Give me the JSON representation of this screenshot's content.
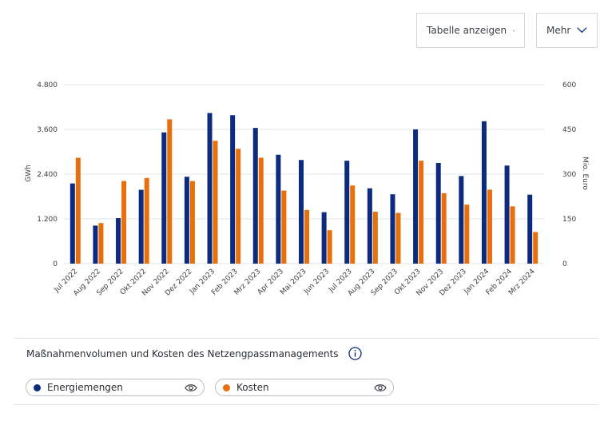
{
  "toolbar": {
    "table_label": "Tabelle anzeigen",
    "table_icon": "table-layout-icon",
    "more_label": "Mehr",
    "more_icon": "chevron-down-icon"
  },
  "caption": {
    "text": "Maßnahmenvolumen und Kosten des Netzengpassmanagements",
    "icon": "info-icon"
  },
  "legend": [
    {
      "name": "Energiemengen",
      "color": "#0c2a7e",
      "icon": "eye-icon"
    },
    {
      "name": "Kosten",
      "color": "#e8700c",
      "icon": "eye-icon"
    }
  ],
  "chart_data": {
    "type": "bar",
    "categories": [
      "Jul 2022",
      "Aug 2022",
      "Sep 2022",
      "Okt 2022",
      "Nov 2022",
      "Dez 2022",
      "Jan 2023",
      "Feb 2023",
      "Mrz 2023",
      "Apr 2023",
      "Mai 2023",
      "Jun 2023",
      "Jul 2023",
      "Aug 2023",
      "Sep 2023",
      "Okt 2023",
      "Nov 2023",
      "Dez 2023",
      "Jan 2024",
      "Feb 2024",
      "Mrz 2024"
    ],
    "series": [
      {
        "name": "Energiemengen",
        "axis": "left",
        "color": "#0c2a7e",
        "values": [
          2150,
          1020,
          1220,
          1980,
          3520,
          2330,
          4040,
          3980,
          3640,
          2920,
          2780,
          1380,
          2760,
          2020,
          1860,
          3600,
          2700,
          2350,
          3820,
          2630,
          1850
        ]
      },
      {
        "name": "Kosten",
        "axis": "right",
        "color": "#e8700c",
        "values": [
          355,
          136,
          277,
          287,
          484,
          277,
          412,
          385,
          355,
          245,
          180,
          112,
          262,
          174,
          170,
          345,
          236,
          198,
          248,
          192,
          106
        ]
      }
    ],
    "ylabel": "GWh",
    "y2label": "Mio. Euro",
    "ylim": [
      0,
      4800
    ],
    "y2lim": [
      0,
      600
    ],
    "yticks": [
      "0",
      "1.200",
      "2.400",
      "3.600",
      "4.800"
    ],
    "y2ticks": [
      "0",
      "150",
      "300",
      "450",
      "600"
    ],
    "grid": true
  }
}
